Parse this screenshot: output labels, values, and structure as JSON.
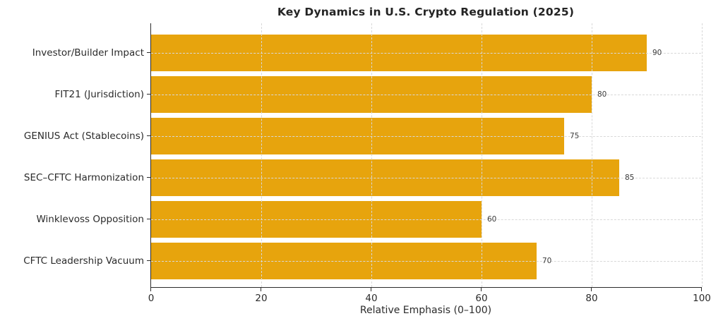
{
  "chart_data": {
    "type": "bar",
    "orientation": "horizontal",
    "title": "Key Dynamics in U.S. Crypto Regulation (2025)",
    "categories": [
      "Investor/Builder Impact",
      "FIT21 (Jurisdiction)",
      "GENIUS Act (Stablecoins)",
      "SEC–CFTC Harmonization",
      "Winklevoss Opposition",
      "CFTC Leadership Vacuum"
    ],
    "values": [
      90,
      80,
      75,
      85,
      60,
      70
    ],
    "value_labels": [
      "90",
      "80",
      "75",
      "85",
      "60",
      "70"
    ],
    "xlabel": "Relative Emphasis (0–100)",
    "xlim": [
      0,
      100
    ],
    "xticks": [
      0,
      20,
      40,
      60,
      80,
      100
    ],
    "xtick_labels": [
      "0",
      "20",
      "40",
      "60",
      "80",
      "100"
    ],
    "bar_color": "#e7a40d",
    "grid": "dashed",
    "grid_color": "#d8d8d8",
    "axis_color": "#2b2b2b",
    "legend": "none"
  }
}
